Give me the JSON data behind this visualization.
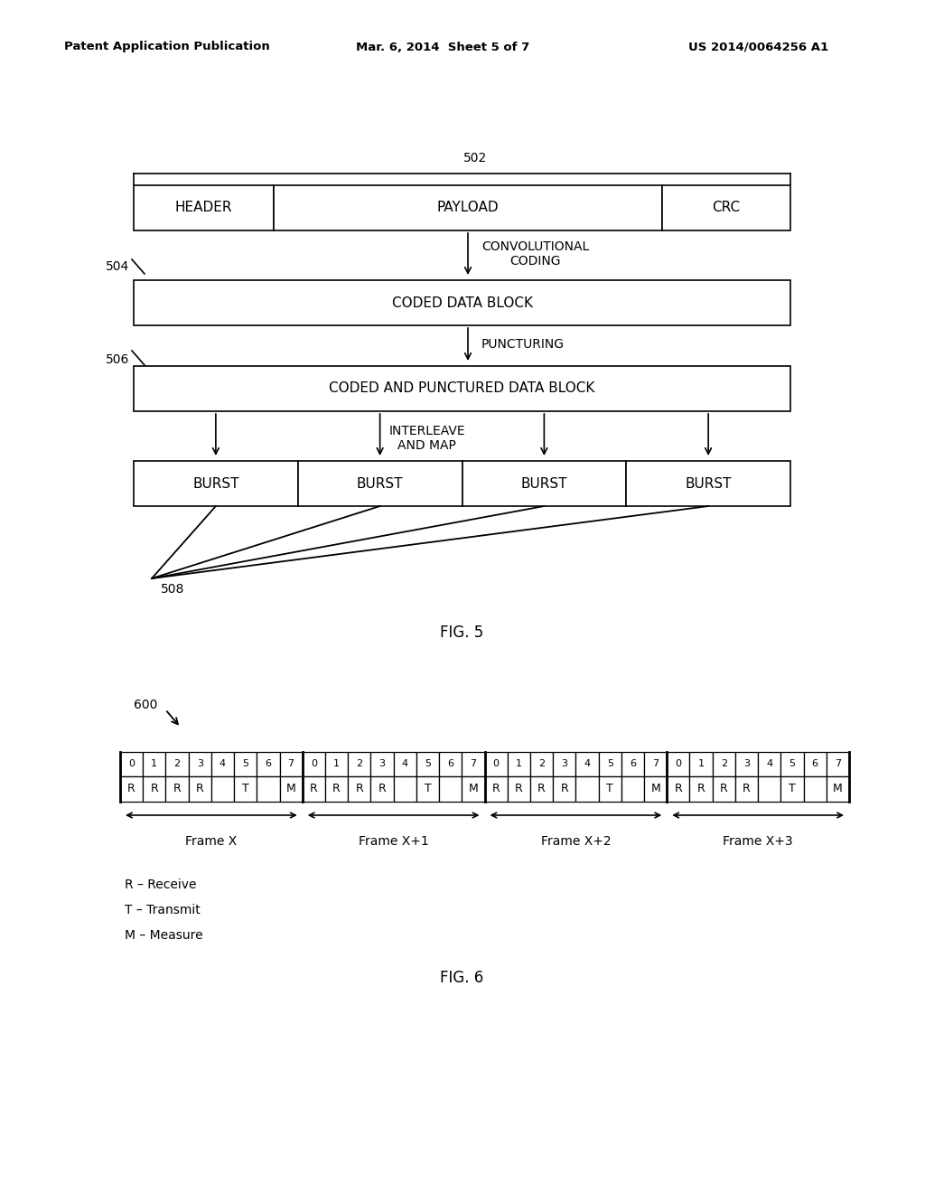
{
  "bg_color": "#ffffff",
  "header_text": "Patent Application Publication",
  "header_date": "Mar. 6, 2014  Sheet 5 of 7",
  "header_patent": "US 2014/0064256 A1",
  "fig5_label": "FIG. 5",
  "fig6_label": "FIG. 6",
  "label_502": "502",
  "label_504": "504",
  "label_506": "506",
  "label_508": "508",
  "label_600": "600",
  "box_header": "HEADER",
  "box_payload": "PAYLOAD",
  "box_crc": "CRC",
  "box_coded": "CODED DATA BLOCK",
  "box_punctured": "CODED AND PUNCTURED DATA BLOCK",
  "text_conv": "CONVOLUTIONAL\nCODING",
  "text_punct": "PUNCTURING",
  "text_interleave": "INTERLEAVE\nAND MAP",
  "burst_labels": [
    "BURST",
    "BURST",
    "BURST",
    "BURST"
  ],
  "frame_names": [
    "Frame X",
    "Frame X+1",
    "Frame X+2",
    "Frame X+3"
  ],
  "legend_r": "R – Receive",
  "legend_t": "T – Transmit",
  "legend_m": "M – Measure",
  "slot_nums": [
    "0",
    "1",
    "2",
    "3",
    "4",
    "5",
    "6",
    "7",
    "0",
    "1",
    "2",
    "3",
    "4",
    "5",
    "6",
    "7",
    "0",
    "1",
    "2",
    "3",
    "4",
    "5",
    "6",
    "7",
    "0",
    "1",
    "2",
    "3",
    "4",
    "5",
    "6",
    "7"
  ],
  "slot_content": [
    "R",
    "R",
    "R",
    "R",
    "",
    "T",
    "",
    "M",
    "R",
    "R",
    "R",
    "R",
    "",
    "T",
    "",
    "M",
    "R",
    "R",
    "R",
    "R",
    "",
    "T",
    "",
    "M",
    "R",
    "R",
    "R",
    "R",
    "",
    "T",
    "",
    "M"
  ]
}
